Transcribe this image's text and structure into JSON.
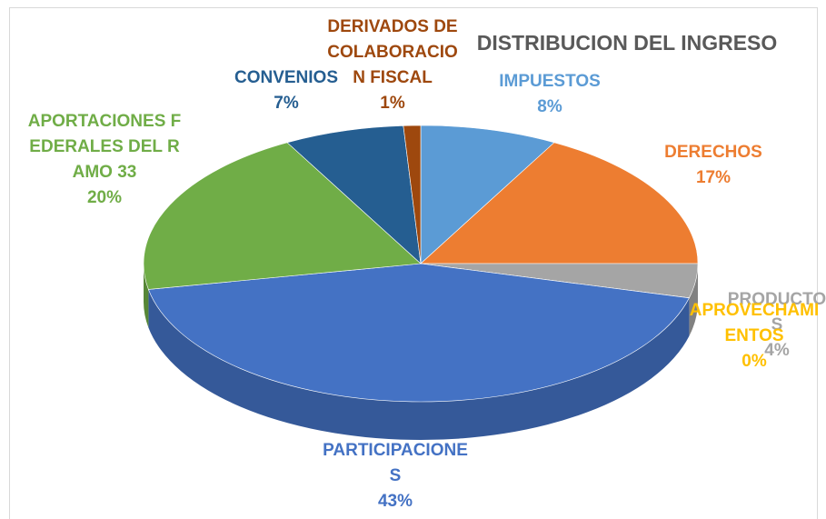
{
  "chart_data": {
    "type": "pie",
    "title": "DISTRIBUCION DEL INGRESO",
    "categories": [
      "IMPUESTOS",
      "DERECHOS",
      "PRODUCTOS",
      "APROVECHAMIENTOS",
      "PARTICIPACIONES",
      "APORTACIONES FEDERALES DEL RAMO 33",
      "CONVENIOS",
      "DERIVADOS DE COLABORACION FISCAL"
    ],
    "values": [
      8,
      17,
      4,
      0,
      43,
      20,
      7,
      1
    ],
    "value_labels": [
      "8%",
      "17%",
      "4%",
      "0%",
      "43%",
      "20%",
      "7%",
      "1%"
    ],
    "colors": [
      "#5b9bd5",
      "#ed7d31",
      "#a5a5a5",
      "#ffc000",
      "#4472c4",
      "#70ad47",
      "#255e91",
      "#9e480e"
    ]
  }
}
